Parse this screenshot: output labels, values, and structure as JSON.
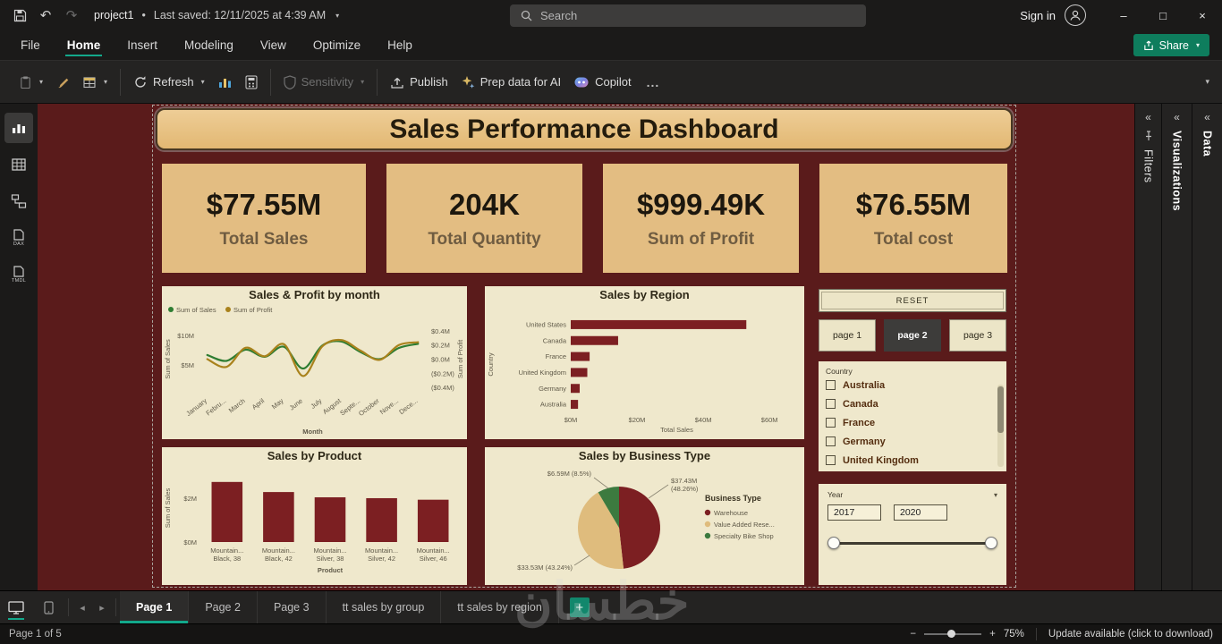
{
  "titlebar": {
    "project": "project1",
    "separator": "•",
    "last_saved": "Last saved: 12/11/2025 at 4:39 AM",
    "search_placeholder": "Search",
    "sign_in": "Sign in"
  },
  "glyphs": {
    "undo": "↶",
    "redo": "↷",
    "chevron": "▾",
    "min": "–",
    "max": "□",
    "close": "×",
    "more": "...",
    "collapse": "«",
    "back": "◂",
    "fwd": "▸",
    "plus": "+",
    "minus": "−"
  },
  "menubar": {
    "items": [
      "File",
      "Home",
      "Insert",
      "Modeling",
      "View",
      "Optimize",
      "Help"
    ],
    "active": "Home",
    "share": "Share"
  },
  "ribbon": {
    "refresh": "Refresh",
    "sensitivity": "Sensitivity",
    "publish": "Publish",
    "prep_ai": "Prep data for AI",
    "copilot": "Copilot"
  },
  "left_rail": {
    "dax": "DAX",
    "tmdl": "TMDL"
  },
  "dashboard": {
    "title": "Sales Performance Dashboard",
    "kpis": [
      {
        "value": "$77.55M",
        "label": "Total Sales"
      },
      {
        "value": "204K",
        "label": "Total Quantity"
      },
      {
        "value": "$999.49K",
        "label": "Sum of Profit"
      },
      {
        "value": "$76.55M",
        "label": "Total cost"
      }
    ],
    "reset_label": "RESET",
    "page_buttons": [
      "page 1",
      "page 2",
      "page 3"
    ],
    "active_page_button": "page 2",
    "country_filter": {
      "label": "Country",
      "options": [
        "Australia",
        "Canada",
        "France",
        "Germany",
        "United Kingdom"
      ]
    },
    "year_slider": {
      "label": "Year",
      "from": "2017",
      "to": "2020"
    }
  },
  "chart_data": [
    {
      "type": "line",
      "title": "Sales & Profit by month",
      "x": [
        "January",
        "Febru...",
        "March",
        "April",
        "May",
        "June",
        "July",
        "August",
        "Septe...",
        "October",
        "Nove...",
        "Dece..."
      ],
      "series": [
        {
          "name": "Sum of Sales",
          "color": "#2e7d32",
          "axis": "left",
          "values": [
            6.7,
            5.7,
            7.6,
            6.4,
            8.1,
            4.4,
            8.3,
            9.0,
            7.2,
            6.0,
            7.9,
            8.6
          ]
        },
        {
          "name": "Sum of Profit",
          "color": "#a9821c",
          "axis": "right",
          "values": [
            0.0,
            -0.11,
            0.16,
            0.04,
            0.21,
            -0.24,
            0.18,
            0.27,
            0.12,
            -0.01,
            0.2,
            0.24
          ]
        }
      ],
      "left_axis": {
        "title": "Sum of Sales",
        "min": 0,
        "max": 12,
        "ticks": [
          {
            "label": "$10M",
            "v": 10
          },
          {
            "label": "$5M",
            "v": 5
          }
        ]
      },
      "right_axis": {
        "title": "Sum of Profit",
        "min": -0.5,
        "max": 0.5,
        "ticks": [
          {
            "label": "$0.4M",
            "v": 0.4
          },
          {
            "label": "$0.2M",
            "v": 0.2
          },
          {
            "label": "$0.0M",
            "v": 0.0
          },
          {
            "label": "($0.2M)",
            "v": -0.2
          },
          {
            "label": "($0.4M)",
            "v": -0.4
          }
        ]
      },
      "xlabel": "Month"
    },
    {
      "type": "barh",
      "title": "Sales by Region",
      "categories": [
        "United States",
        "Canada",
        "France",
        "United Kingdom",
        "Germany",
        "Australia"
      ],
      "values": [
        53,
        14.3,
        5.7,
        5.0,
        2.7,
        2.2
      ],
      "xmax": 64,
      "xticks": [
        {
          "label": "$0M",
          "v": 0
        },
        {
          "label": "$20M",
          "v": 20
        },
        {
          "label": "$40M",
          "v": 40
        },
        {
          "label": "$60M",
          "v": 60
        }
      ],
      "xlabel": "Total Sales",
      "ylabel": "Country"
    },
    {
      "type": "bar",
      "title": "Sales by Product",
      "categories": [
        [
          "Mountain...",
          "Black, 38"
        ],
        [
          "Mountain...",
          "Black, 42"
        ],
        [
          "Mountain...",
          "Silver, 38"
        ],
        [
          "Mountain...",
          "Silver, 42"
        ],
        [
          "Mountain...",
          "Silver, 46"
        ]
      ],
      "values": [
        2.74,
        2.28,
        2.04,
        2.0,
        1.93
      ],
      "ymax": 3.1,
      "yticks": [
        {
          "label": "$0M",
          "v": 0
        },
        {
          "label": "$2M",
          "v": 2
        }
      ],
      "xlabel": "Product",
      "ylabel": "Sum of Sales"
    },
    {
      "type": "pie",
      "title": "Sales by Business Type",
      "legend_title": "Business Type",
      "slices": [
        {
          "name": "Warehouse",
          "pct": 48.26,
          "color": "#7c1f22",
          "label_lines": [
            "$37.43M",
            "(48.26%)"
          ]
        },
        {
          "name": "Value Added Rese...",
          "pct": 43.24,
          "color": "#dfbc7d",
          "label_lines": [
            "$33.53M (43.24%)"
          ]
        },
        {
          "name": "Specialty Bike Shop",
          "pct": 8.5,
          "color": "#3c7a3f",
          "label_lines": [
            "$6.59M (8.5%)"
          ]
        }
      ]
    }
  ],
  "right_panels": {
    "filters": "Filters",
    "visualizations": "Visualizations",
    "data": "Data"
  },
  "page_tabs": {
    "tabs": [
      "Page 1",
      "Page 2",
      "Page 3",
      "tt sales by group",
      "tt sales by region"
    ],
    "active": "Page 1"
  },
  "status_bar": {
    "page_indicator": "Page 1 of 5",
    "zoom": "75%",
    "update": "Update available (click to download)"
  },
  "watermark": "خطسان",
  "colors": {
    "accent_teal": "#13a88b",
    "share_green": "#0e7d5d",
    "canvas_maroon": "#5a1b1b",
    "card_tan": "#e3bd82",
    "chart_cream": "#efe8cc",
    "bar_maroon": "#7c1f22",
    "line_green": "#2e7d32",
    "line_gold": "#a9821c"
  }
}
